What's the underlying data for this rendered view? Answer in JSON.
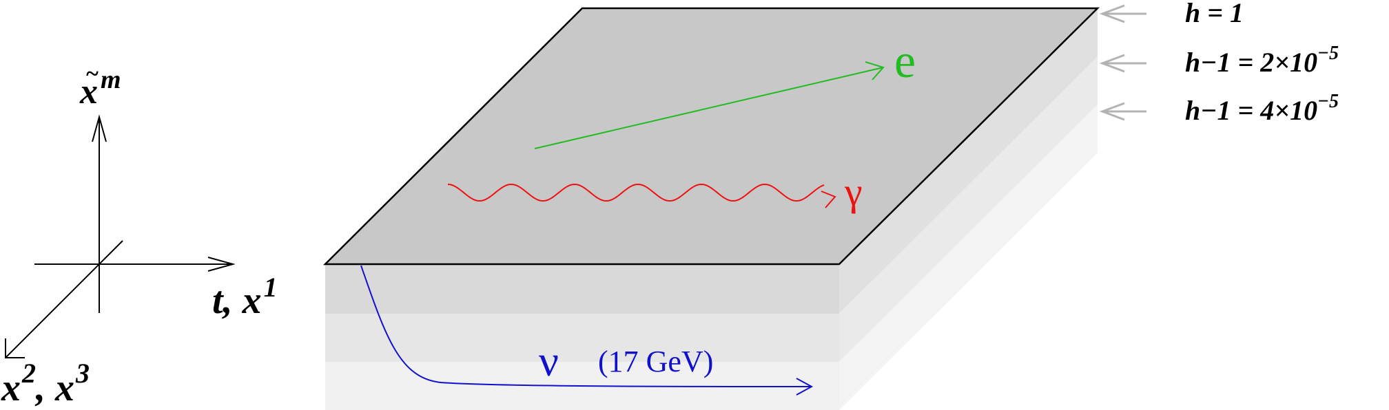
{
  "axes": {
    "vertical_label_base": "x",
    "vertical_label_accent": "~",
    "vertical_label_sup": "m",
    "horizontal_label": "t, x",
    "horizontal_label_sup": "1",
    "depth_label_part1": "x",
    "depth_label_sup1": "2",
    "depth_label_part2": ", x",
    "depth_label_sup2": "3"
  },
  "particles": {
    "electron": {
      "symbol": "e",
      "color": "#22bb22"
    },
    "photon": {
      "symbol": "γ",
      "color": "#ee1111"
    },
    "neutrino": {
      "symbol": "ν",
      "energy": "(17 GeV)",
      "color": "#1111cc"
    }
  },
  "levels": [
    {
      "label": "h = 1"
    },
    {
      "label": "h−1 = 2×10",
      "exponent": "−5"
    },
    {
      "label": "h−1 = 4×10",
      "exponent": "−5"
    }
  ],
  "colors": {
    "top_plane": "#c8c8c8",
    "layer1": "#d9d9d9",
    "layer2": "#e6e6e6",
    "layer3": "#f1f1f1",
    "level_arrow": "#b3b3b3"
  }
}
